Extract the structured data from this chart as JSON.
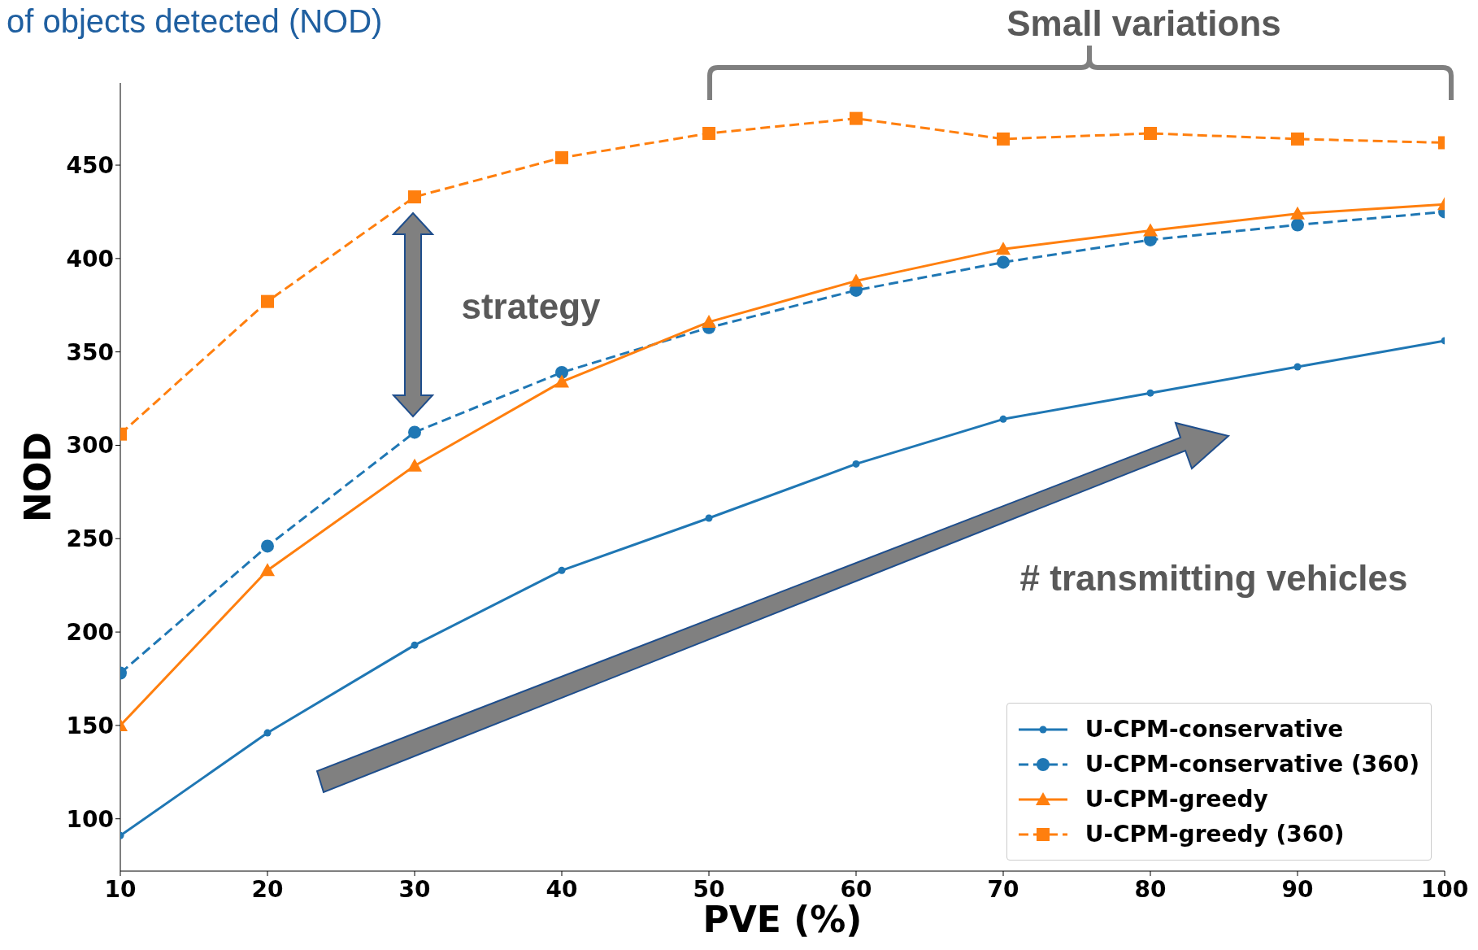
{
  "chart_data": {
    "type": "line",
    "title": "of objects detected (NOD)",
    "xlabel": "PVE (%)",
    "ylabel": "NOD",
    "x": [
      10,
      20,
      30,
      40,
      50,
      60,
      70,
      80,
      90,
      100
    ],
    "xlim": [
      10,
      100
    ],
    "xticks": [
      10,
      20,
      30,
      40,
      50,
      60,
      70,
      80,
      90,
      100
    ],
    "ylim": [
      72,
      494
    ],
    "yticks": [
      100,
      150,
      200,
      250,
      300,
      350,
      400,
      450
    ],
    "grid": false,
    "legend": "bottom right",
    "annotations": [
      "Small variations",
      "strategy",
      "# transmitting vehicles"
    ],
    "series": [
      {
        "name": "U-CPM-conservative",
        "color": "#1f77b4",
        "marker": "circle",
        "line_style": "solid",
        "values": [
          91,
          146,
          193,
          233,
          261,
          290,
          314,
          328,
          342,
          356
        ]
      },
      {
        "name": "U-CPM-conservative (360)",
        "color": "#1f77b4",
        "marker": "circle",
        "line_style": "dashed",
        "values": [
          178,
          246,
          307,
          339,
          363,
          383,
          398,
          410,
          418,
          425
        ]
      },
      {
        "name": "U-CPM-greedy",
        "color": "#ff7f0e",
        "marker": "triangle",
        "line_style": "solid",
        "values": [
          150,
          233,
          289,
          334,
          366,
          388,
          405,
          415,
          424,
          429
        ]
      },
      {
        "name": "U-CPM-greedy (360)",
        "color": "#ff7f0e",
        "marker": "square",
        "line_style": "dashed",
        "values": [
          306,
          377,
          433,
          454,
          467,
          475,
          464,
          467,
          464,
          462
        ]
      }
    ]
  }
}
